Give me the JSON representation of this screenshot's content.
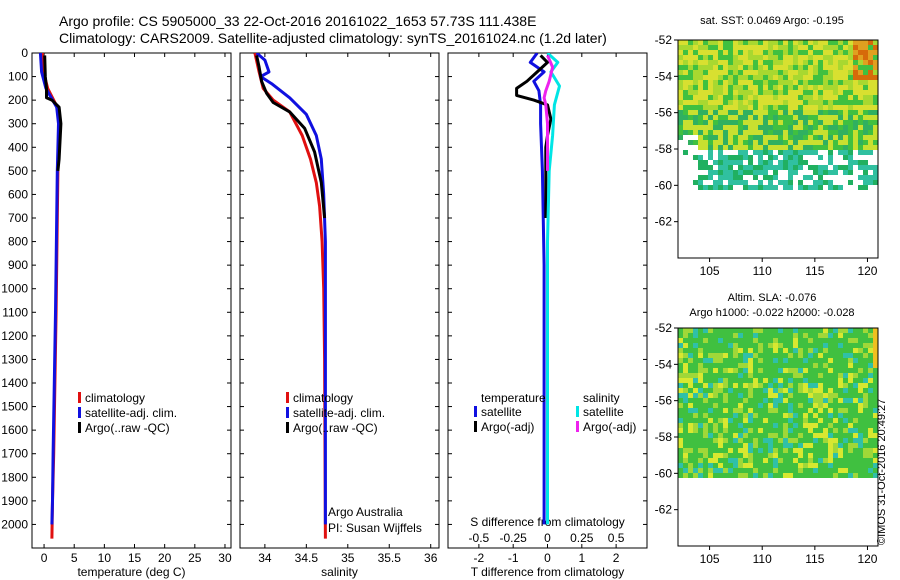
{
  "header": {
    "line1": "Argo profile: CS 5905000_33 22-Oct-2016 20161022_1653 57.73S 111.438E",
    "line2": "Climatology: CARS2009. Satellite-adjusted climatology: synTS_20161024.nc (1.2d later)"
  },
  "credit": {
    "ship_line1": "Argo Australia",
    "ship_line2": "PI: Susan Wijffels",
    "imos_stamp": "©IMOS 31-Oct-2016 20:49:27"
  },
  "colors": {
    "climatology": "#e01010",
    "satellite": "#1010e0",
    "argo": "#000000",
    "sat_salinity": "#00e5e5",
    "argo_salinity": "#ee22ee"
  },
  "chart_data": [
    {
      "type": "line",
      "panel": "temperature",
      "xlabel": "temperature (deg C)",
      "xlim": [
        -2,
        31
      ],
      "xticks": [
        0,
        5,
        10,
        15,
        20,
        25,
        30
      ],
      "ylim": [
        0,
        2100
      ],
      "y_inverted": true,
      "yticks": [
        0,
        100,
        200,
        300,
        400,
        500,
        600,
        700,
        800,
        900,
        1000,
        1100,
        1200,
        1300,
        1400,
        1500,
        1600,
        1700,
        1800,
        1900,
        2000
      ],
      "legend": [
        "climatology",
        "satellite-adj. clim.",
        "Argo(..raw -QC)"
      ],
      "legend_placement": "lower-right",
      "series": [
        {
          "name": "climatology",
          "color": "#e01010",
          "x": [
            -0.3,
            -0.1,
            0.6,
            2.2,
            2.5,
            2.4,
            2.3,
            2.2,
            2.1,
            2.0,
            1.8,
            1.6,
            1.4,
            1.3
          ],
          "y": [
            0,
            80,
            150,
            230,
            300,
            400,
            500,
            700,
            900,
            1100,
            1400,
            1700,
            1900,
            2060
          ]
        },
        {
          "name": "satellite-adj. clim.",
          "color": "#1010e0",
          "x": [
            -0.6,
            -0.4,
            0.3,
            2.1,
            2.4,
            2.3,
            2.2,
            2.1,
            2.0,
            1.9,
            1.7,
            1.5,
            1.4,
            1.3
          ],
          "y": [
            0,
            80,
            150,
            230,
            300,
            400,
            500,
            700,
            900,
            1100,
            1400,
            1700,
            1900,
            2000
          ]
        },
        {
          "name": "Argo(..raw -QC)",
          "color": "#000000",
          "x": [
            0.1,
            0.2,
            0.4,
            0.4,
            1.3,
            2.5,
            2.8,
            2.7,
            2.6,
            2.5,
            2.3
          ],
          "y": [
            10,
            100,
            150,
            190,
            200,
            230,
            300,
            350,
            400,
            450,
            500
          ]
        }
      ]
    },
    {
      "type": "line",
      "panel": "salinity",
      "xlabel": "salinity",
      "xlim": [
        33.7,
        36.1
      ],
      "xticks": [
        34,
        34.5,
        35,
        35.5,
        36
      ],
      "ylim": [
        0,
        2100
      ],
      "y_inverted": true,
      "legend": [
        "climatology",
        "satellite-adj. clim.",
        "Argo(..raw -QC)"
      ],
      "legend_placement": "lower-right",
      "series": [
        {
          "name": "climatology",
          "color": "#e01010",
          "x": [
            33.88,
            33.93,
            33.98,
            34.1,
            34.3,
            34.45,
            34.55,
            34.62,
            34.66,
            34.69,
            34.71,
            34.72,
            34.73
          ],
          "y": [
            0,
            80,
            150,
            200,
            250,
            350,
            450,
            550,
            650,
            800,
            1000,
            1300,
            2060
          ]
        },
        {
          "name": "satellite-adj. clim.",
          "color": "#1010e0",
          "x": [
            33.9,
            34.0,
            34.05,
            33.95,
            34.08,
            34.3,
            34.5,
            34.62,
            34.68,
            34.71,
            34.73,
            34.73,
            34.73
          ],
          "y": [
            0,
            30,
            80,
            100,
            130,
            190,
            260,
            350,
            450,
            600,
            800,
            1200,
            2000
          ]
        },
        {
          "name": "Argo(..raw -QC)",
          "color": "#000000",
          "x": [
            33.9,
            33.93,
            33.96,
            34.02,
            34.1,
            34.3,
            34.48,
            34.6,
            34.68,
            34.72
          ],
          "y": [
            10,
            60,
            120,
            170,
            210,
            250,
            320,
            420,
            550,
            700
          ]
        }
      ]
    },
    {
      "type": "line",
      "panel": "difference",
      "xlabel": "T difference from climatology",
      "x2label": "S difference from climatology",
      "xlim": [
        -2.9,
        2.9
      ],
      "xticks": [
        -2,
        -1,
        0,
        1,
        2
      ],
      "x2ticks": [
        -0.5,
        -0.25,
        0,
        0.25,
        0.5
      ],
      "ylim": [
        0,
        2100
      ],
      "y_inverted": true,
      "legend_groups": [
        "temperature",
        "salinity"
      ],
      "legend": [
        "satellite",
        "Argo(-adj)",
        "satellite",
        "Argo(-adj)"
      ],
      "series": [
        {
          "name": "satellite",
          "group": "temperature",
          "color": "#1010e0",
          "x": [
            -0.3,
            -0.5,
            -0.1,
            -0.4,
            -0.25,
            -0.2,
            -0.2,
            -0.15,
            -0.1,
            -0.1,
            -0.1
          ],
          "y": [
            0,
            40,
            80,
            120,
            160,
            220,
            300,
            500,
            900,
            1500,
            2000
          ]
        },
        {
          "name": "Argo(-adj)",
          "group": "temperature",
          "color": "#000000",
          "x": [
            -0.2,
            0.0,
            -0.3,
            -0.6,
            -0.9,
            -0.9,
            -0.4,
            0.0,
            0.1,
            0.0,
            -0.05,
            -0.05,
            -0.05,
            -0.05
          ],
          "y": [
            10,
            40,
            80,
            120,
            150,
            180,
            200,
            220,
            280,
            350,
            400,
            500,
            600,
            700
          ]
        },
        {
          "name": "satellite",
          "group": "salinity",
          "color": "#00e5e5",
          "x": [
            0.0,
            0.3,
            0.1,
            0.35,
            0.2,
            0.15,
            0.05,
            0.0,
            0.0,
            0.0
          ],
          "y": [
            0,
            40,
            80,
            140,
            220,
            350,
            500,
            800,
            1500,
            2000
          ]
        },
        {
          "name": "Argo(-adj)",
          "group": "salinity",
          "color": "#ee22ee",
          "x": [
            0.0,
            0.15,
            0.05,
            -0.05,
            -0.1,
            -0.05,
            0.0,
            0.0
          ],
          "y": [
            10,
            60,
            120,
            160,
            190,
            220,
            300,
            500
          ]
        }
      ]
    },
    {
      "type": "heatmap",
      "panel": "sst_map",
      "title": "sat. SST: 0.0469 Argo: -0.195",
      "xlim": [
        102,
        121
      ],
      "ylim": [
        -64,
        -52
      ],
      "xticks": [
        105,
        110,
        115,
        120
      ],
      "yticks": [
        -52,
        -54,
        -56,
        -58,
        -60,
        -62
      ]
    },
    {
      "type": "heatmap",
      "panel": "sla_map",
      "title": "Altim. SLA: -0.076",
      "subtitle": "Argo h1000: -0.022 h2000: -0.028",
      "xlim": [
        102,
        121
      ],
      "ylim": [
        -64,
        -52
      ],
      "xticks": [
        105,
        110,
        115,
        120
      ],
      "yticks": [
        -52,
        -54,
        -56,
        -58,
        -60,
        -62
      ]
    }
  ]
}
